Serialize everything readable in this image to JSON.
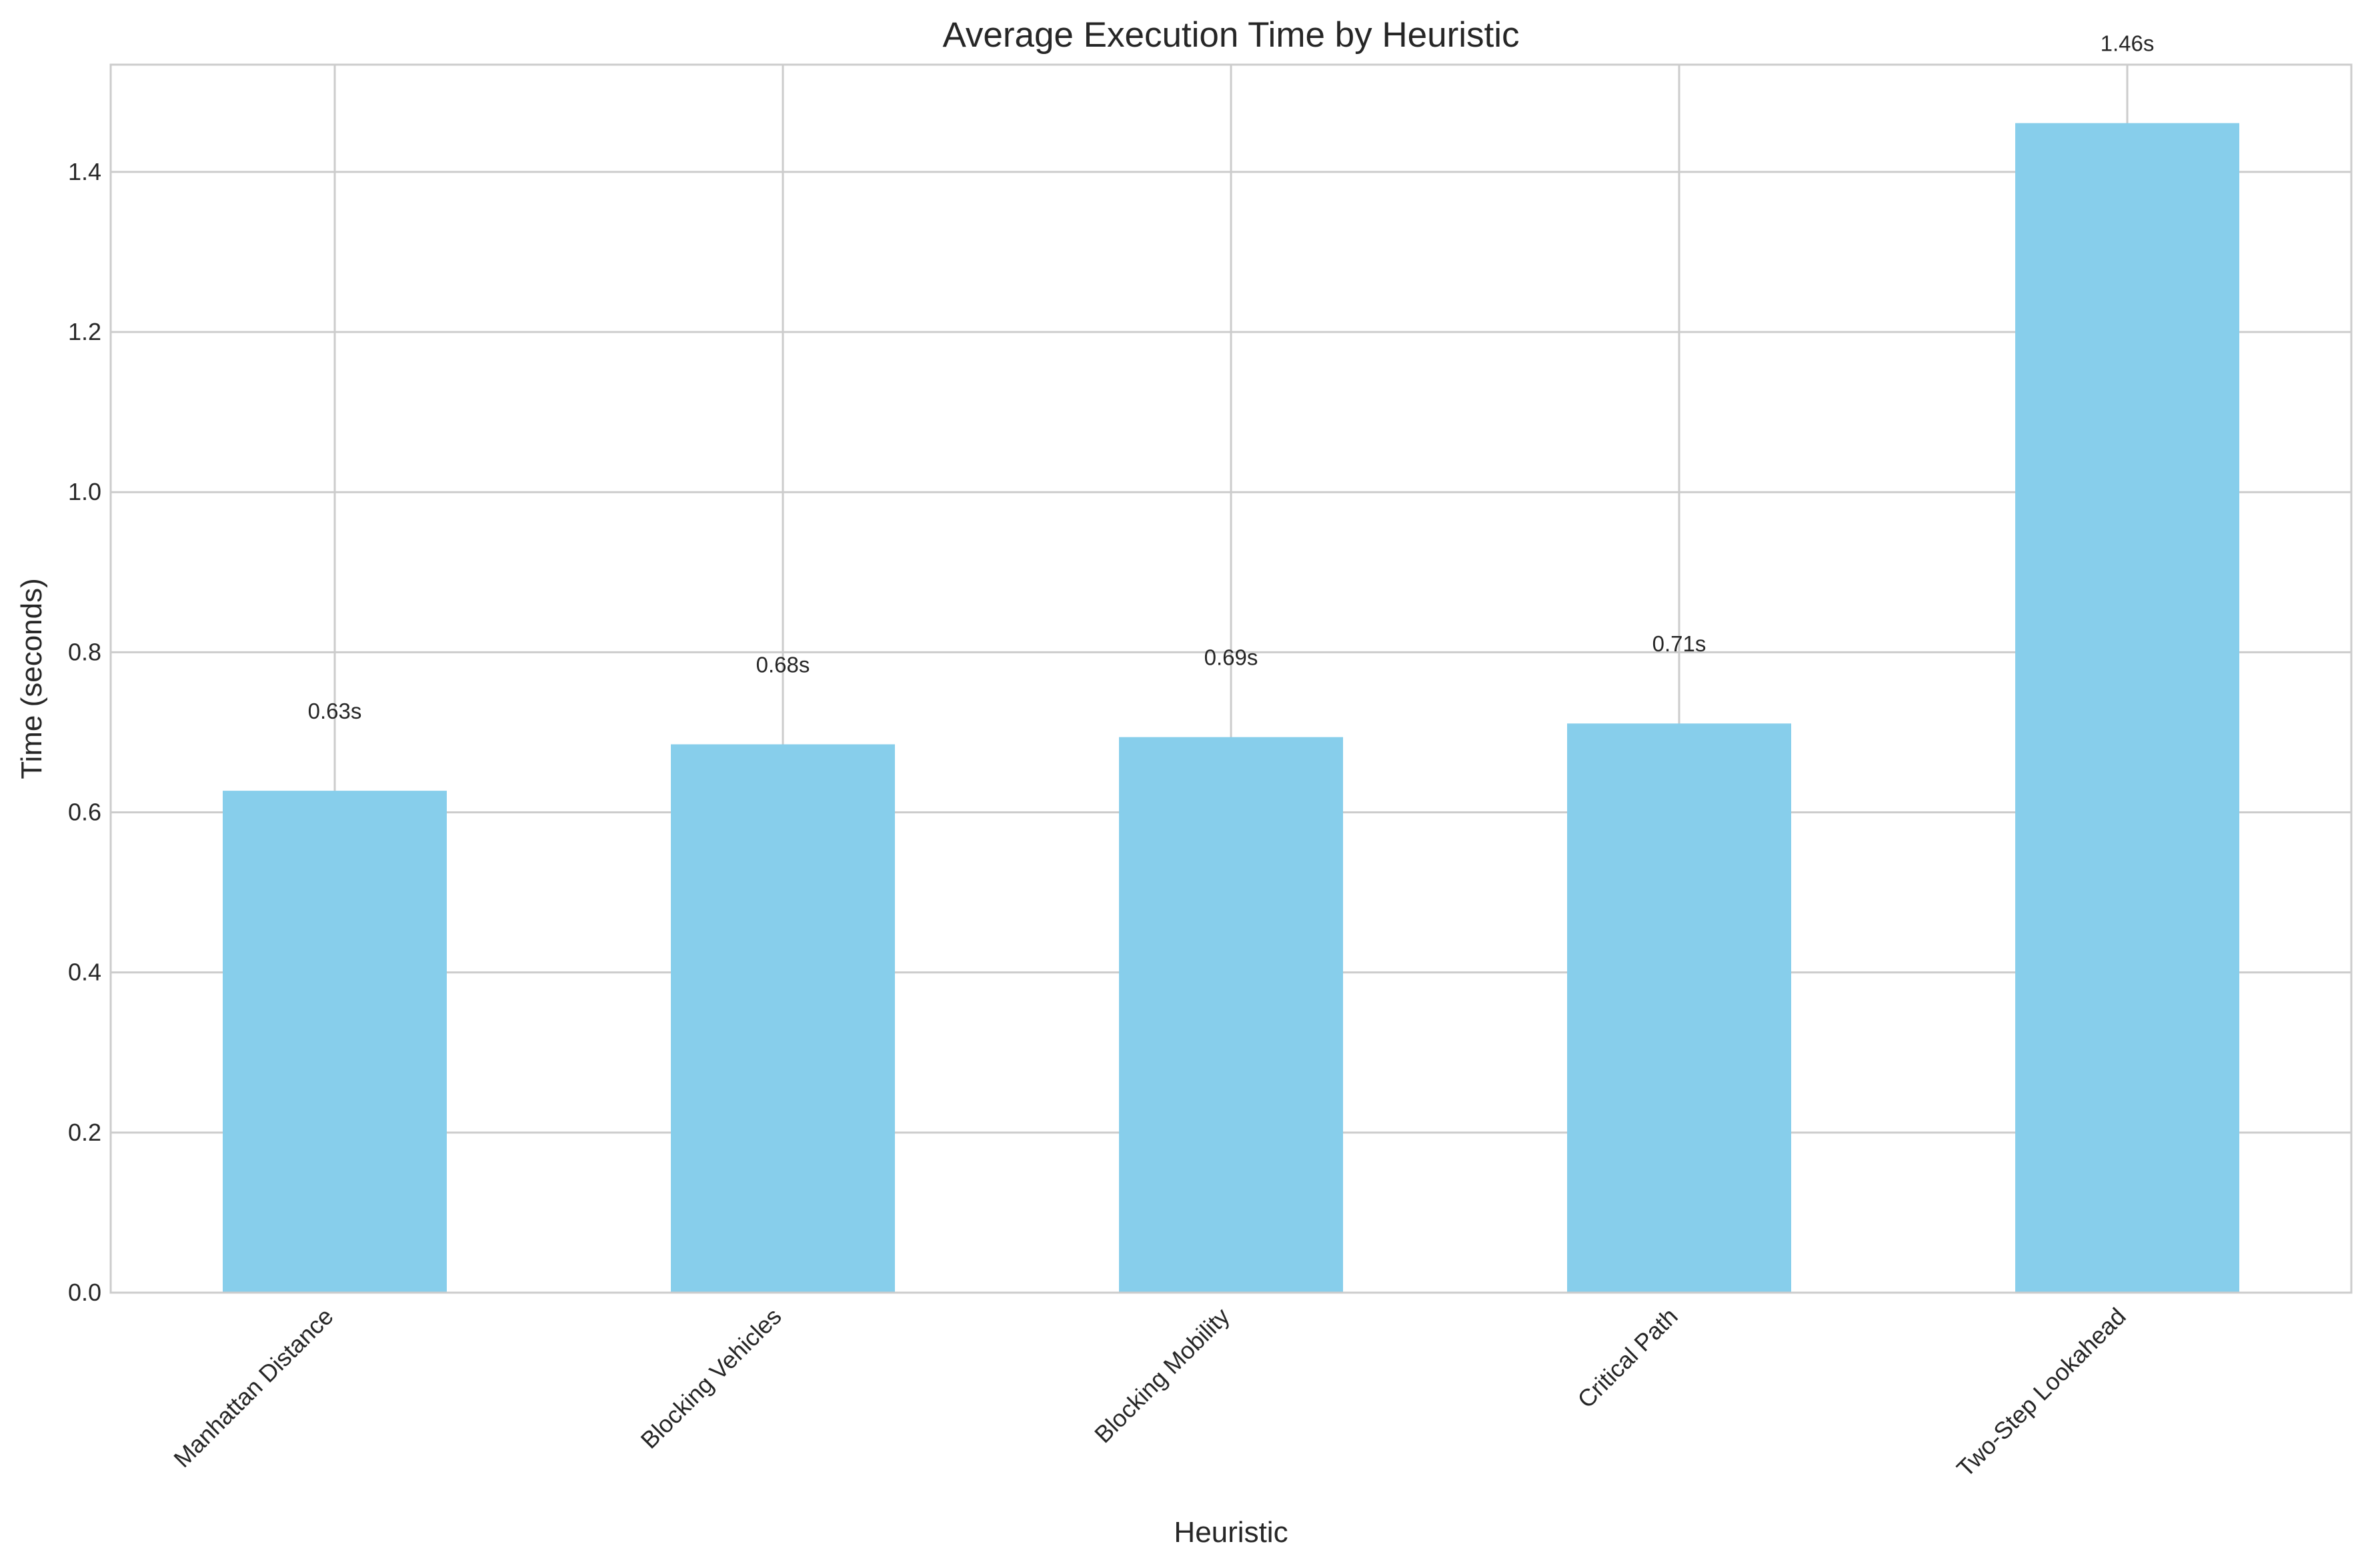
{
  "chart_data": {
    "type": "bar",
    "title": "Average Execution Time by Heuristic",
    "xlabel": "Heuristic",
    "ylabel": "Time (seconds)",
    "categories": [
      "Manhattan Distance",
      "Blocking Vehicles",
      "Blocking Mobility",
      "Critical Path",
      "Two-Step Lookahead"
    ],
    "values": [
      0.627,
      0.685,
      0.694,
      0.711,
      1.461
    ],
    "data_labels": [
      "0.63s",
      "0.68s",
      "0.69s",
      "0.71s",
      "1.46s"
    ],
    "ylim": [
      0,
      1.534
    ],
    "yticks": [
      0.0,
      0.2,
      0.4,
      0.6,
      0.8,
      1.0,
      1.2,
      1.4
    ],
    "ytick_labels": [
      "0.0",
      "0.2",
      "0.4",
      "0.6",
      "0.8",
      "1.0",
      "1.2",
      "1.4"
    ],
    "grid": true,
    "bar_color": "#87CEEB"
  }
}
